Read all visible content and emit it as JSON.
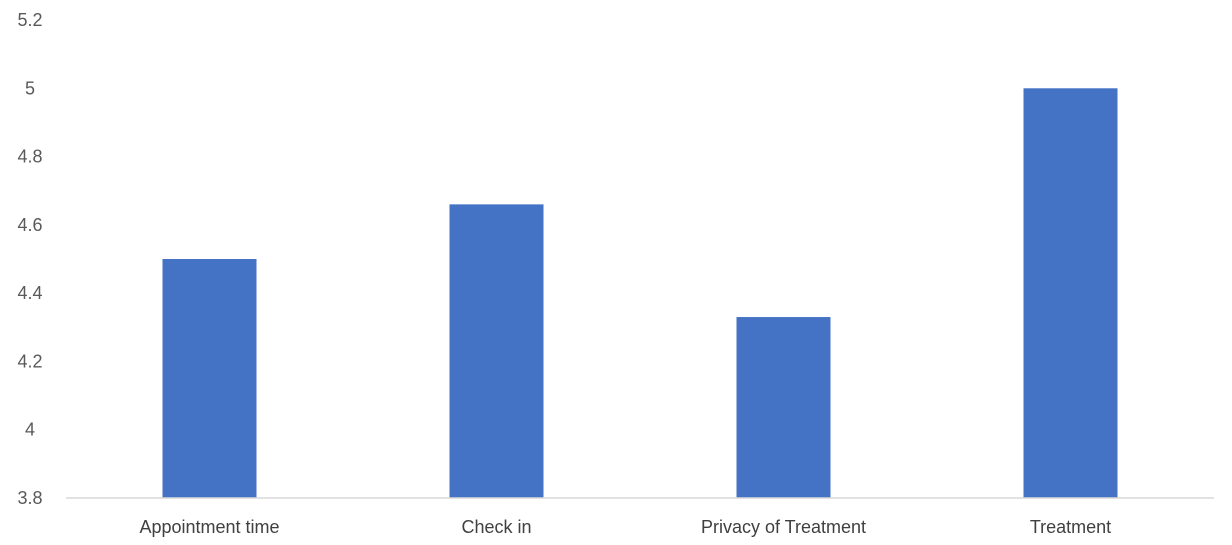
{
  "chart_data": {
    "type": "bar",
    "title": "",
    "xlabel": "",
    "ylabel": "",
    "categories": [
      "Appointment time",
      "Check in",
      "Privacy of Treatment",
      "Treatment"
    ],
    "values": [
      4.5,
      4.66,
      4.33,
      5.0
    ],
    "ylim": [
      3.8,
      5.2
    ],
    "yticks": [
      "3.8",
      "4",
      "4.2",
      "4.4",
      "4.6",
      "4.8",
      "5",
      "5.2"
    ],
    "grid": false,
    "legend": "none",
    "bar_color": "#4472C4",
    "axis_color": "#D9D9D9"
  }
}
